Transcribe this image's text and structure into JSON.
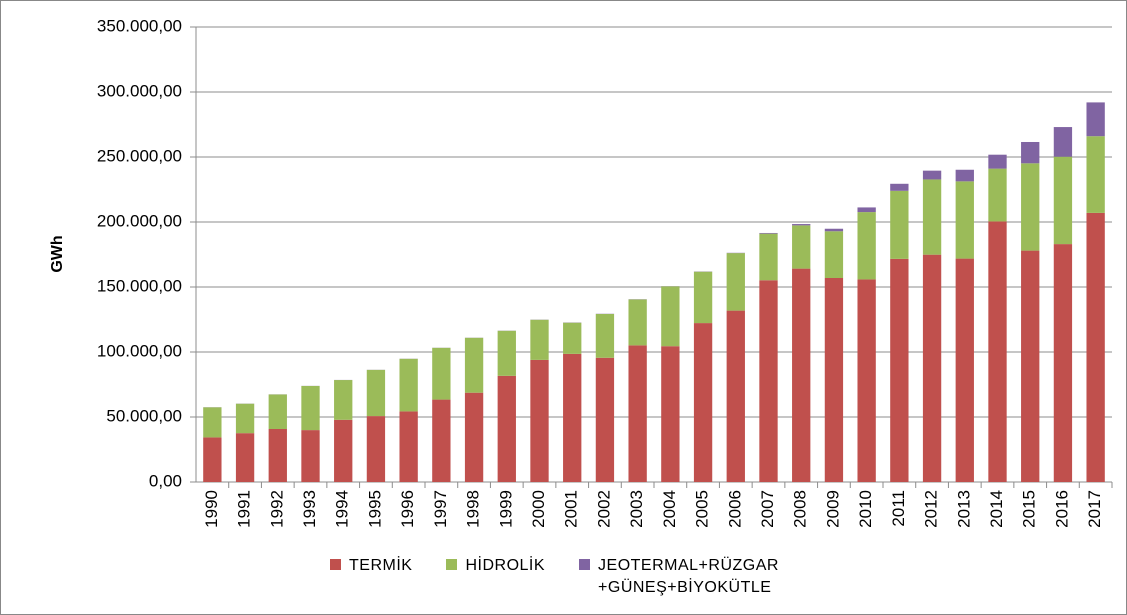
{
  "chart_data": {
    "type": "stacked_bar",
    "y_label": "GWh",
    "categories": [
      "1990",
      "1991",
      "1992",
      "1993",
      "1994",
      "1995",
      "1996",
      "1997",
      "1998",
      "1999",
      "2000",
      "2001",
      "2002",
      "2003",
      "2004",
      "2005",
      "2006",
      "2007",
      "2008",
      "2009",
      "2010",
      "2011",
      "2012",
      "2013",
      "2014",
      "2015",
      "2016",
      "2017"
    ],
    "series": [
      {
        "name": "TERMİK",
        "color": "#c0504d",
        "values": [
          34315,
          37563,
          40774,
          39922,
          47849,
          50706,
          54302,
          63397,
          68703,
          81661,
          93934,
          98563,
          95563,
          105101,
          104464,
          122242,
          131835,
          155196,
          164139,
          156923,
          155828,
          171638,
          174872,
          171847,
          200417,
          178000,
          183000,
          207000
        ]
      },
      {
        "name": "HİDROLİK",
        "color": "#9bbb59",
        "values": [
          23148,
          22683,
          26568,
          33951,
          30586,
          35541,
          40475,
          39816,
          42229,
          34678,
          30879,
          24010,
          33684,
          35330,
          46084,
          39561,
          44244,
          35851,
          33270,
          35958,
          51796,
          52339,
          57865,
          59420,
          40645,
          67146,
          67231,
          59000
        ]
      },
      {
        "name": "JEOTERMAL+RÜZGAR +GÜNEŞ+BİYOKÜTLE",
        "color": "#8064a2",
        "values": [
          80,
          81,
          70,
          78,
          79,
          86,
          84,
          83,
          90,
          102,
          109,
          152,
          153,
          150,
          151,
          153,
          221,
          511,
          1009,
          1931,
          3585,
          5418,
          6760,
          8921,
          10709,
          16400,
          22800,
          26000
        ]
      }
    ],
    "ylim": [
      0,
      350000
    ],
    "yticks": [
      {
        "value": 0,
        "label": "0,00"
      },
      {
        "value": 50000,
        "label": "50.000,00"
      },
      {
        "value": 100000,
        "label": "100.000,00"
      },
      {
        "value": 150000,
        "label": "150.000,00"
      },
      {
        "value": 200000,
        "label": "200.000,00"
      },
      {
        "value": 250000,
        "label": "250.000,00"
      },
      {
        "value": 300000,
        "label": "300.000,00"
      },
      {
        "value": 350000,
        "label": "350.000,00"
      }
    ],
    "grid": true
  }
}
